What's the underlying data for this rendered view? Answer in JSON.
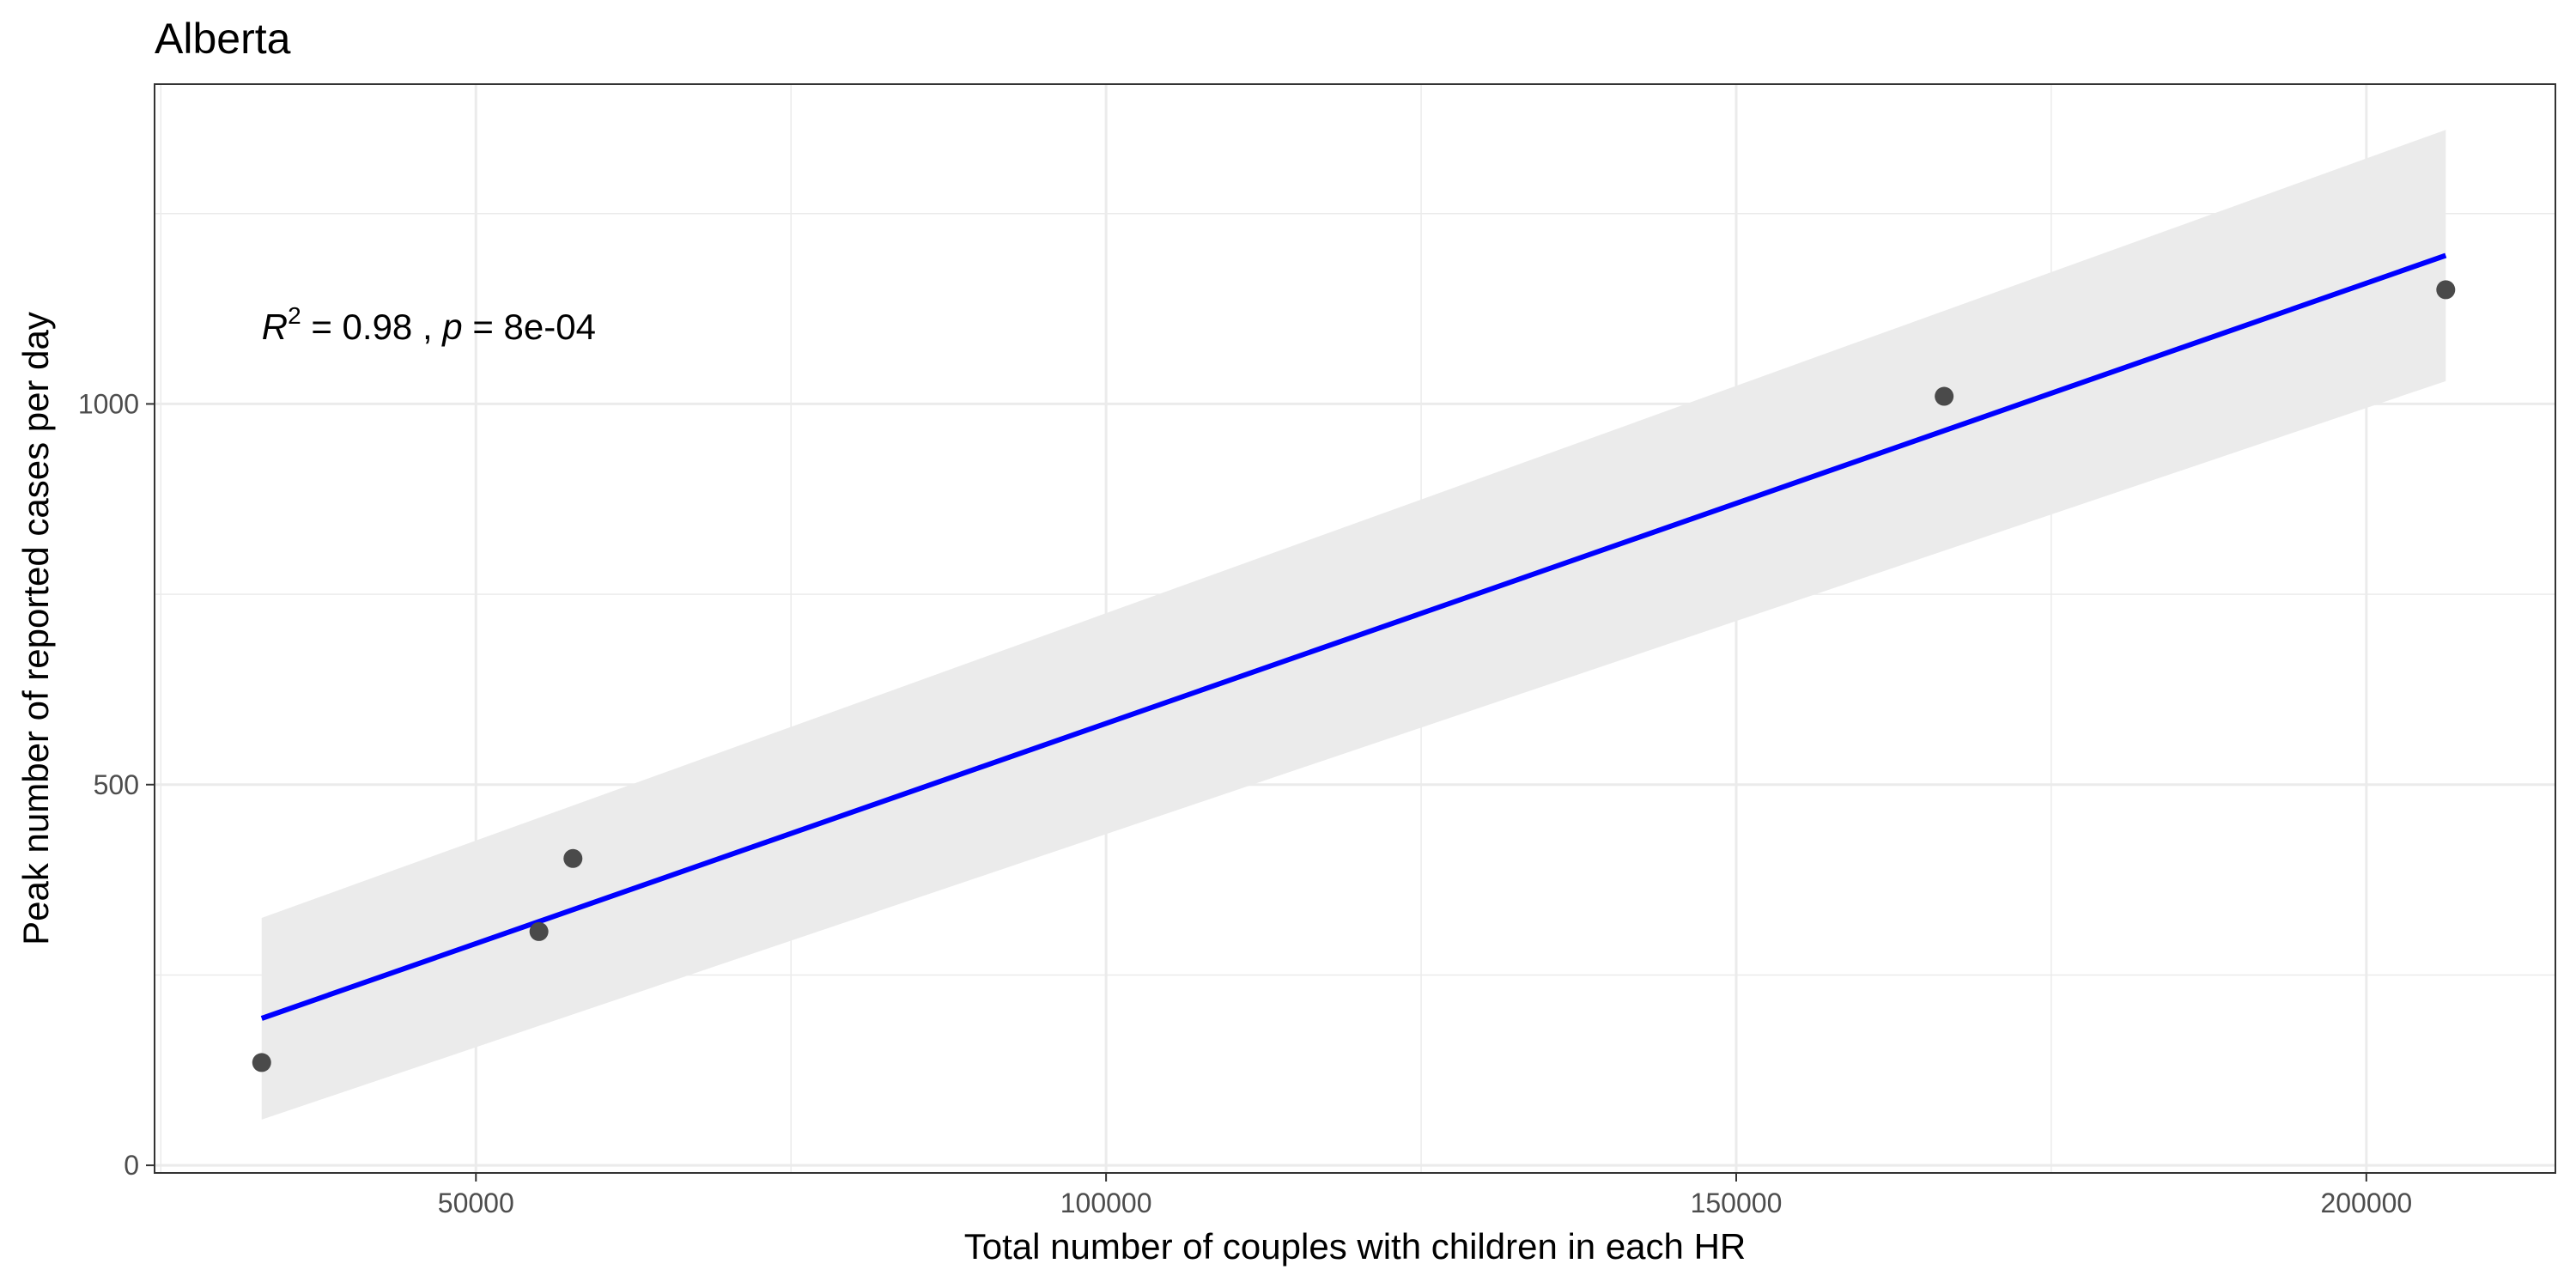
{
  "chart_data": {
    "type": "scatter",
    "title": "Alberta",
    "xlabel": "Total number of couples with children in each HR",
    "ylabel": "Peak number of reported cases per day",
    "xlim": [
      24500,
      215000
    ],
    "ylim": [
      -10,
      1420
    ],
    "x_ticks": [
      50000,
      100000,
      150000,
      200000
    ],
    "x_tick_labels": [
      "50000",
      "100000",
      "150000",
      "200000"
    ],
    "y_ticks": [
      0,
      500,
      1000
    ],
    "y_tick_labels": [
      "0",
      "500",
      "1000"
    ],
    "grid": true,
    "points": [
      {
        "x": 33000,
        "y": 135
      },
      {
        "x": 55000,
        "y": 307
      },
      {
        "x": 57700,
        "y": 403
      },
      {
        "x": 166500,
        "y": 1010
      },
      {
        "x": 206300,
        "y": 1150
      }
    ],
    "fit": {
      "x": [
        33000,
        206300
      ],
      "y": [
        193,
        1195
      ],
      "ci_lower": [
        60,
        1030
      ],
      "ci_upper": [
        325,
        1360
      ],
      "line_color": "#0000ff",
      "band_color": "#ebebeb"
    },
    "annotation": {
      "r2_symbol": "R",
      "r2_exponent": "2",
      "r2_text": " = 0.98",
      "sep": " , ",
      "p_symbol": "p",
      "p_text": " = 8e-04",
      "x": 33000,
      "y": 1085
    },
    "colors": {
      "point": "#4a4a4a",
      "grid": "#ebebeb",
      "panel_border": "#333333"
    }
  }
}
